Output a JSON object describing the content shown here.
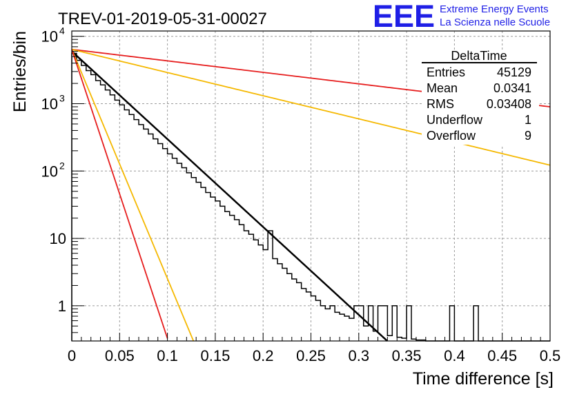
{
  "header": {
    "title": "TREV-01-2019-05-31-00027",
    "logo_text": "EEE",
    "logo_line1": "Extreme Energy Events",
    "logo_line2": "La Scienza nelle Scuole"
  },
  "colors": {
    "logo": "#1f1fe6",
    "histogram": "#000000",
    "fit": "#000000",
    "red": "#e61c1c",
    "orange": "#f5b800",
    "grid": "#9a9a9a"
  },
  "stats": {
    "title": "DeltaTime",
    "rows": [
      {
        "label": "Entries",
        "value": "45129"
      },
      {
        "label": "Mean",
        "value": "0.0341"
      },
      {
        "label": "RMS",
        "value": "0.03408"
      },
      {
        "label": "Underflow",
        "value": "1"
      },
      {
        "label": "Overflow",
        "value": "9"
      }
    ]
  },
  "chart_data": {
    "type": "histogram",
    "xlabel": "Time difference [s]",
    "ylabel": "Entries/bin",
    "xlim": [
      0,
      0.5
    ],
    "ylim": [
      0.3,
      12000
    ],
    "y_scale": "log",
    "grid": true,
    "x_ticks": [
      "0",
      "0.05",
      "0.1",
      "0.15",
      "0.2",
      "0.25",
      "0.3",
      "0.35",
      "0.4",
      "0.45",
      "0.5"
    ],
    "y_ticks": [
      {
        "value": 10000,
        "base": "10",
        "exp": "4"
      },
      {
        "value": 1000,
        "base": "10",
        "exp": "3"
      },
      {
        "value": 100,
        "base": "10",
        "exp": "2"
      },
      {
        "value": 10,
        "base": "10",
        "exp": ""
      },
      {
        "value": 1,
        "base": "1",
        "exp": ""
      }
    ],
    "bin_width": 0.005,
    "histogram": [
      5600,
      4400,
      3700,
      3100,
      2700,
      2200,
      1900,
      1600,
      1350,
      1130,
      960,
      810,
      690,
      580,
      490,
      420,
      355,
      300,
      255,
      215,
      180,
      155,
      130,
      112,
      94,
      80,
      68,
      57,
      48,
      41,
      36,
      30,
      25,
      22,
      19,
      16,
      13,
      11.5,
      9.5,
      8,
      6.8,
      7,
      5,
      4.2,
      3.6,
      3,
      2.5,
      2.2,
      1.8,
      1.6,
      1.4,
      1.2,
      1,
      0.9,
      0.85,
      0.8,
      0.75,
      0.7,
      0.65,
      0.6,
      0.55,
      0.5,
      0.45,
      0.42,
      0.4,
      0.38,
      0.36,
      0.35,
      0.34,
      0.33,
      0.32,
      0.32,
      0.31,
      0.31,
      0.3,
      0.3,
      0.3,
      0.3,
      0.3,
      0.3,
      0.3,
      0.3,
      0.3,
      0.3,
      0.3,
      0.3,
      0.3,
      0.3,
      0.3,
      0.3,
      0.3,
      0.3,
      0.3,
      0.3,
      0.3,
      0.3,
      0.3,
      0.3,
      0.3,
      0.3
    ],
    "histogram_overrides": [
      {
        "bin": 41,
        "value": 13
      },
      {
        "bin": 54,
        "value": 1
      },
      {
        "bin": 59,
        "value": 1
      },
      {
        "bin": 60,
        "value": 1
      },
      {
        "bin": 62,
        "value": 1
      },
      {
        "bin": 64,
        "value": 1
      },
      {
        "bin": 65,
        "value": 1
      },
      {
        "bin": 67,
        "value": 1
      },
      {
        "bin": 70,
        "value": 1
      },
      {
        "bin": 79,
        "value": 1
      },
      {
        "bin": 84,
        "value": 1
      }
    ],
    "series": [
      {
        "style": "black",
        "type": "exponential",
        "x_range": [
          0,
          0.34
        ],
        "y0": 6000,
        "tau": 0.0333
      },
      {
        "style": "red",
        "type": "exponential",
        "x_range": [
          0,
          0.5
        ],
        "y0": 6400,
        "tau": 0.2547
      },
      {
        "style": "orange",
        "type": "exponential",
        "x_range": [
          0,
          0.5
        ],
        "y0": 6400,
        "tau": 0.1263
      },
      {
        "style": "orange",
        "type": "exponential",
        "x_range": [
          0,
          0.13
        ],
        "y0": 6400,
        "tau": 0.01276
      },
      {
        "style": "red",
        "type": "exponential",
        "x_range": [
          0,
          0.1
        ],
        "y0": 6400,
        "tau": 0.01012
      }
    ]
  }
}
